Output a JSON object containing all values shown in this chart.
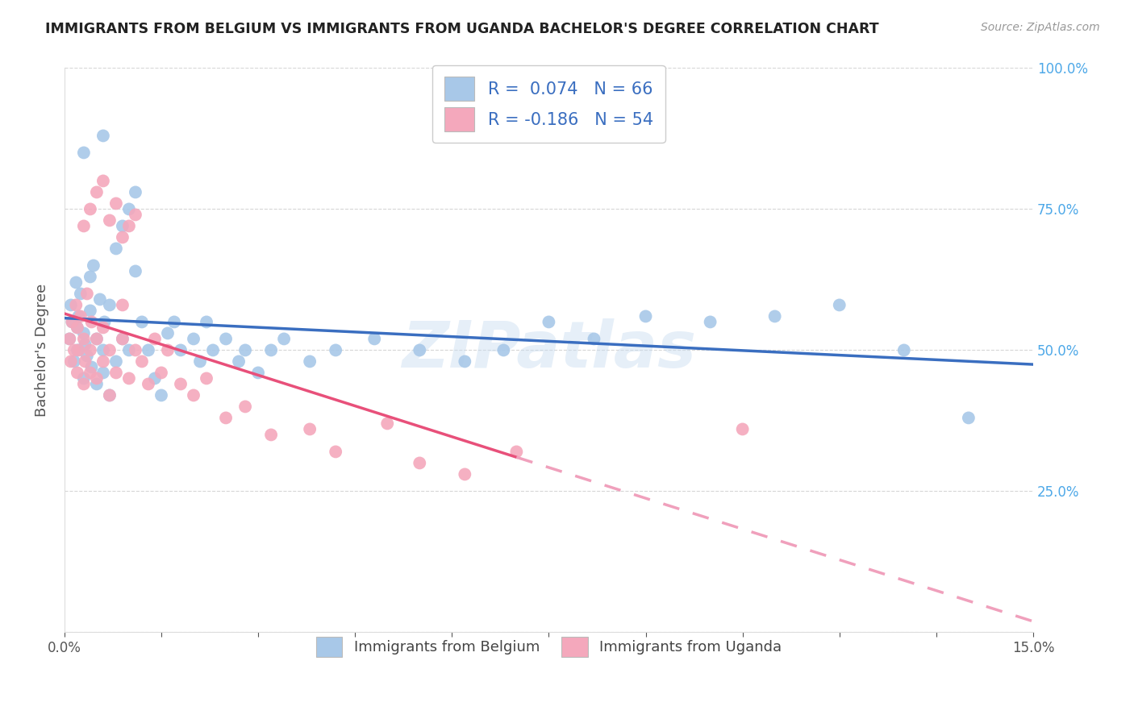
{
  "title": "IMMIGRANTS FROM BELGIUM VS IMMIGRANTS FROM UGANDA BACHELOR'S DEGREE CORRELATION CHART",
  "source": "Source: ZipAtlas.com",
  "ylabel": "Bachelor's Degree",
  "xlim": [
    0.0,
    0.15
  ],
  "ylim": [
    0.0,
    1.0
  ],
  "watermark": "ZIPatlas",
  "blue_color": "#A8C8E8",
  "pink_color": "#F4A8BC",
  "blue_line_color": "#3A6EC0",
  "pink_line_color": "#E8507A",
  "pink_dashed_color": "#F0A0BC",
  "belgium_x": [
    0.0008,
    0.001,
    0.0012,
    0.0015,
    0.0018,
    0.002,
    0.002,
    0.0022,
    0.0025,
    0.003,
    0.003,
    0.0032,
    0.0035,
    0.004,
    0.004,
    0.0042,
    0.0045,
    0.005,
    0.005,
    0.0055,
    0.006,
    0.006,
    0.0062,
    0.007,
    0.007,
    0.008,
    0.008,
    0.009,
    0.009,
    0.01,
    0.01,
    0.011,
    0.011,
    0.012,
    0.013,
    0.014,
    0.015,
    0.016,
    0.017,
    0.018,
    0.02,
    0.021,
    0.022,
    0.023,
    0.025,
    0.027,
    0.028,
    0.03,
    0.032,
    0.034,
    0.038,
    0.042,
    0.048,
    0.055,
    0.062,
    0.068,
    0.075,
    0.082,
    0.09,
    0.1,
    0.11,
    0.12,
    0.13,
    0.14,
    0.003,
    0.006
  ],
  "belgium_y": [
    0.52,
    0.58,
    0.55,
    0.48,
    0.62,
    0.5,
    0.54,
    0.56,
    0.6,
    0.45,
    0.53,
    0.51,
    0.49,
    0.57,
    0.63,
    0.47,
    0.65,
    0.44,
    0.52,
    0.59,
    0.5,
    0.46,
    0.55,
    0.42,
    0.58,
    0.48,
    0.68,
    0.52,
    0.72,
    0.5,
    0.75,
    0.64,
    0.78,
    0.55,
    0.5,
    0.45,
    0.42,
    0.53,
    0.55,
    0.5,
    0.52,
    0.48,
    0.55,
    0.5,
    0.52,
    0.48,
    0.5,
    0.46,
    0.5,
    0.52,
    0.48,
    0.5,
    0.52,
    0.5,
    0.48,
    0.5,
    0.55,
    0.52,
    0.56,
    0.55,
    0.56,
    0.58,
    0.5,
    0.38,
    0.85,
    0.88
  ],
  "uganda_x": [
    0.0008,
    0.001,
    0.0012,
    0.0015,
    0.0018,
    0.002,
    0.002,
    0.0022,
    0.0025,
    0.003,
    0.003,
    0.0032,
    0.0035,
    0.004,
    0.004,
    0.0042,
    0.005,
    0.005,
    0.006,
    0.006,
    0.007,
    0.007,
    0.008,
    0.009,
    0.009,
    0.01,
    0.011,
    0.012,
    0.013,
    0.014,
    0.015,
    0.016,
    0.018,
    0.02,
    0.022,
    0.025,
    0.028,
    0.032,
    0.038,
    0.042,
    0.05,
    0.055,
    0.062,
    0.07,
    0.003,
    0.004,
    0.005,
    0.006,
    0.007,
    0.008,
    0.009,
    0.01,
    0.011,
    0.105
  ],
  "uganda_y": [
    0.52,
    0.48,
    0.55,
    0.5,
    0.58,
    0.46,
    0.54,
    0.5,
    0.56,
    0.44,
    0.52,
    0.48,
    0.6,
    0.46,
    0.5,
    0.55,
    0.45,
    0.52,
    0.48,
    0.54,
    0.42,
    0.5,
    0.46,
    0.52,
    0.58,
    0.45,
    0.5,
    0.48,
    0.44,
    0.52,
    0.46,
    0.5,
    0.44,
    0.42,
    0.45,
    0.38,
    0.4,
    0.35,
    0.36,
    0.32,
    0.37,
    0.3,
    0.28,
    0.32,
    0.72,
    0.75,
    0.78,
    0.8,
    0.73,
    0.76,
    0.7,
    0.72,
    0.74,
    0.36
  ]
}
